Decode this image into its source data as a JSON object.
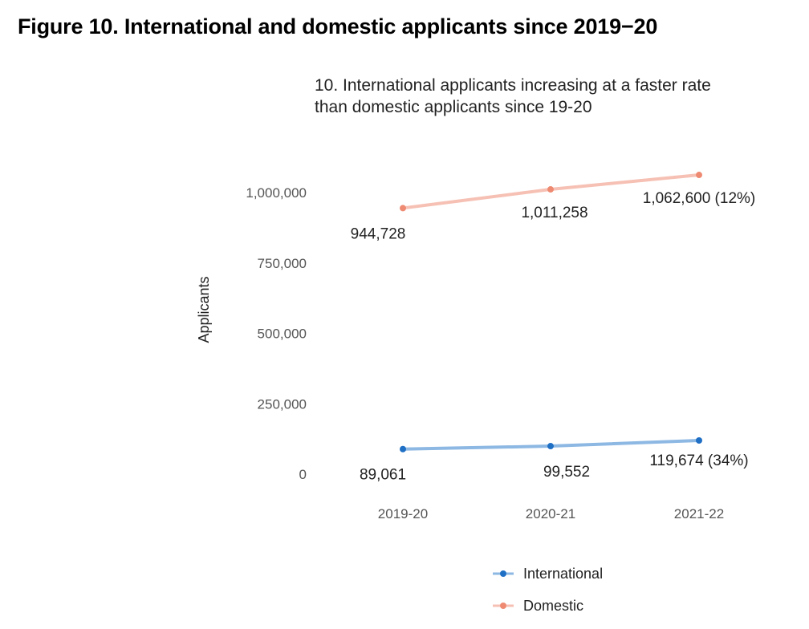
{
  "figure_heading": "Figure 10. International and domestic applicants since 2019−20",
  "chart_data": {
    "type": "line",
    "title": "10. International applicants increasing at a faster rate\n than domestic applicants since 19-20",
    "xlabel": "",
    "ylabel": "Applicants",
    "categories": [
      "2019-20",
      "2020-21",
      "2021-22"
    ],
    "ylim": [
      0,
      1000000
    ],
    "yticks": [
      0,
      250000,
      500000,
      750000,
      1000000
    ],
    "ytick_labels": [
      "0",
      "250,000",
      "500,000",
      "750,000",
      "1,000,000"
    ],
    "grid": false,
    "legend_position": "bottom",
    "series": [
      {
        "name": "International",
        "values": [
          89061,
          99552,
          119674
        ],
        "labels": [
          "89,061",
          "99,552",
          "119,674 (34%)"
        ],
        "color": "#1f6fc5",
        "line_color": "#8db8e3"
      },
      {
        "name": "Domestic",
        "values": [
          944728,
          1011258,
          1062600
        ],
        "labels": [
          "944,728",
          "1,011,258",
          "1,062,600 (12%)"
        ],
        "color": "#ef8a72",
        "line_color": "#f6c1b4"
      }
    ]
  }
}
